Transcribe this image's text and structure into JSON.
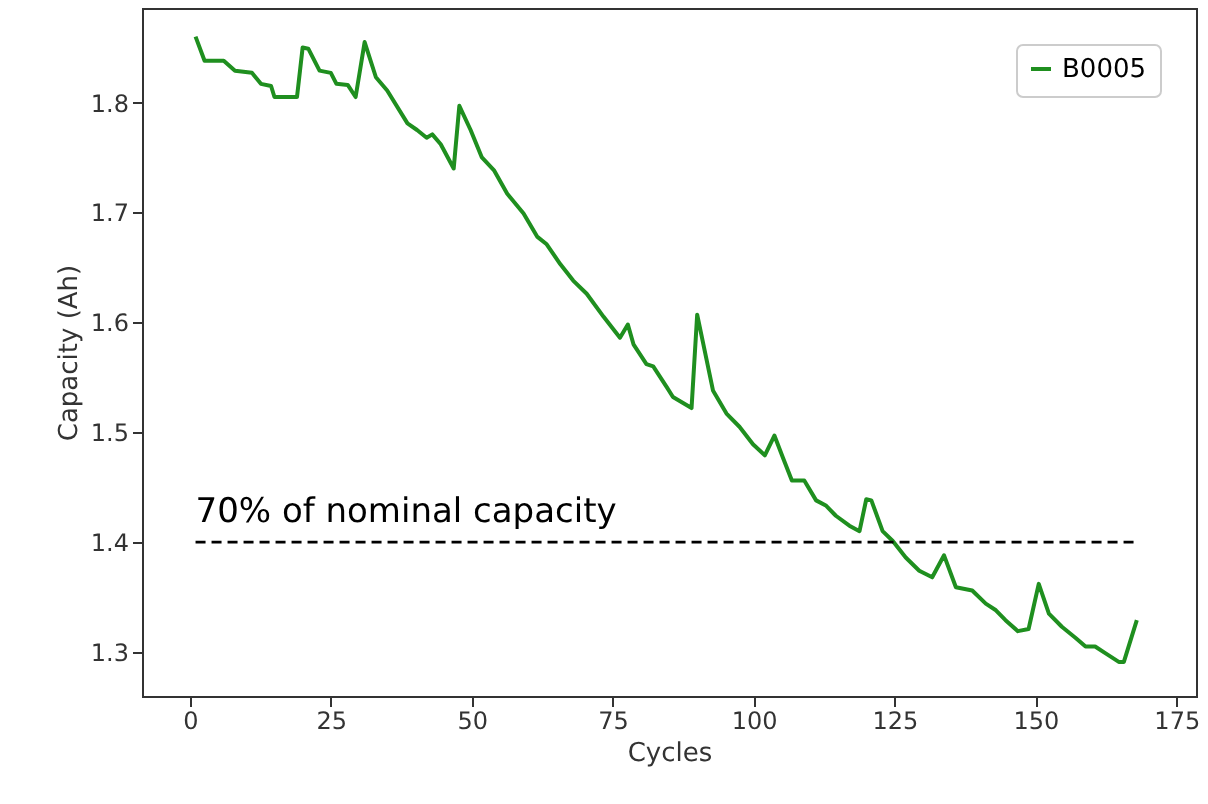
{
  "chart_data": {
    "type": "line",
    "xlabel": "Cycles",
    "ylabel": "Capacity (Ah)",
    "xlim": [
      -8.5,
      178.5
    ],
    "ylim": [
      1.26,
      1.886
    ],
    "xticks": [
      0,
      25,
      50,
      75,
      100,
      125,
      150,
      175
    ],
    "yticks": [
      1.3,
      1.4,
      1.5,
      1.6,
      1.7,
      1.8
    ],
    "grid": false,
    "legend": "top right",
    "line_style": "solid",
    "marker": "none",
    "ref_lines": [
      {
        "axis": "y",
        "value": 1.4,
        "label": "70% of nominal capacity",
        "color": "#000000",
        "line_style": "dashed"
      }
    ],
    "series": [
      {
        "name": "B0005",
        "color": "#1f8f1f",
        "x": [
          1,
          2.6,
          6,
          8,
          11,
          12.6,
          14.4,
          15,
          19,
          20,
          21,
          23,
          25,
          26,
          28,
          29.4,
          31,
          33,
          35,
          38.6,
          40.3,
          42,
          43,
          44.5,
          46.8,
          47.8,
          49.8,
          51.8,
          54,
          56.3,
          59.2,
          61.6,
          63.3,
          65.7,
          68,
          70.4,
          73.4,
          76.3,
          77.7,
          78.7,
          81,
          82.2,
          84.6,
          85.7,
          89,
          90,
          92.8,
          95.2,
          97.5,
          99.9,
          102,
          103.7,
          105.2,
          106.8,
          109,
          111.1,
          112.9,
          114.6,
          117,
          118.8,
          120,
          120.9,
          122.9,
          124.7,
          127,
          129.4,
          131.7,
          133.8,
          135.9,
          138.8,
          141.2,
          143,
          144.7,
          146.9,
          148.8,
          150.6,
          152.4,
          154.7,
          157.1,
          158.9,
          160.6,
          162.4,
          164.8,
          165.7,
          168
        ],
        "values": [
          1.86,
          1.838,
          1.838,
          1.829,
          1.827,
          1.817,
          1.815,
          1.805,
          1.805,
          1.85,
          1.849,
          1.829,
          1.827,
          1.817,
          1.816,
          1.805,
          1.855,
          1.823,
          1.811,
          1.781,
          1.775,
          1.768,
          1.771,
          1.762,
          1.74,
          1.797,
          1.775,
          1.75,
          1.738,
          1.717,
          1.699,
          1.678,
          1.671,
          1.653,
          1.638,
          1.626,
          1.605,
          1.586,
          1.598,
          1.58,
          1.562,
          1.56,
          1.541,
          1.532,
          1.522,
          1.607,
          1.538,
          1.517,
          1.505,
          1.489,
          1.479,
          1.497,
          1.477,
          1.456,
          1.456,
          1.438,
          1.433,
          1.424,
          1.415,
          1.41,
          1.439,
          1.438,
          1.41,
          1.401,
          1.386,
          1.374,
          1.368,
          1.388,
          1.359,
          1.356,
          1.344,
          1.338,
          1.329,
          1.319,
          1.321,
          1.362,
          1.335,
          1.323,
          1.313,
          1.305,
          1.305,
          1.299,
          1.291,
          1.291,
          1.329
        ]
      }
    ]
  }
}
